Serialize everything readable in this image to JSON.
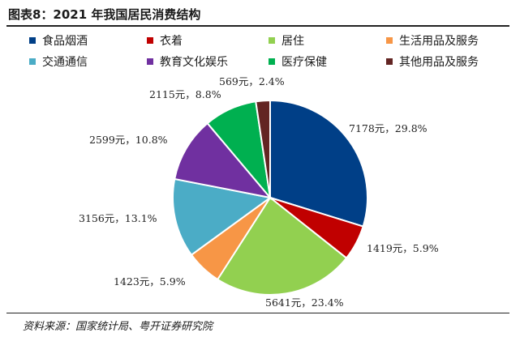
{
  "figure_title": "图表8：2021 年我国居民消费结构",
  "source": "资料来源：国家统计局、粤开证券研究院",
  "chart_data": {
    "type": "pie",
    "title": "",
    "legend_position": "top",
    "slices": [
      {
        "name": "食品烟酒",
        "value": 7178,
        "percent": 29.8,
        "label": "7178元，29.8%",
        "color": "#003f87"
      },
      {
        "name": "衣着",
        "value": 1419,
        "percent": 5.9,
        "label": "1419元，5.9%",
        "color": "#c00000"
      },
      {
        "name": "居住",
        "value": 5641,
        "percent": 23.4,
        "label": "5641元，23.4%",
        "color": "#92d050"
      },
      {
        "name": "生活用品及服务",
        "value": 1423,
        "percent": 5.9,
        "label": "1423元，5.9%",
        "color": "#f79646"
      },
      {
        "name": "交通通信",
        "value": 3156,
        "percent": 13.1,
        "label": "3156元，13.1%",
        "color": "#4bacc6"
      },
      {
        "name": "教育文化娱乐",
        "value": 2599,
        "percent": 10.8,
        "label": "2599元，10.8%",
        "color": "#7030a0"
      },
      {
        "name": "医疗保健",
        "value": 2115,
        "percent": 8.8,
        "label": "2115元，8.8%",
        "color": "#00b050"
      },
      {
        "name": "其他用品及服务",
        "value": 569,
        "percent": 2.4,
        "label": "569元，2.4%",
        "color": "#632523"
      }
    ]
  }
}
